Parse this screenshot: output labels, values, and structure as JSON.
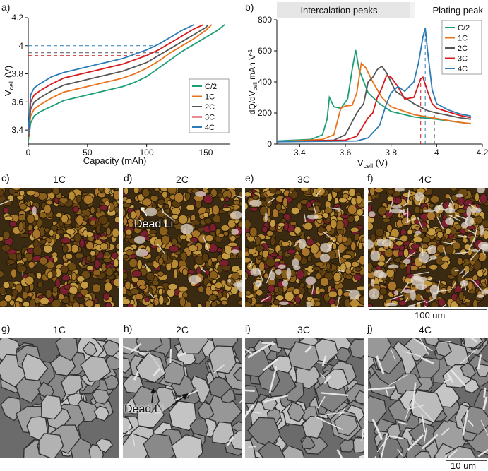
{
  "panel_letters": {
    "a": "a)",
    "b": "b)",
    "c": "c)",
    "d": "d)",
    "e": "e)",
    "f": "f)",
    "g": "g)",
    "h": "h)",
    "i": "i)",
    "j": "j)"
  },
  "chart_data": [
    {
      "id": "a",
      "type": "line",
      "xlabel": "Capacity (mAh)",
      "ylabel_main": "V",
      "ylabel_sub": "cell",
      "ylabel_unit": " (V)",
      "xlim": [
        0,
        170
      ],
      "ylim": [
        3.3,
        4.2
      ],
      "xticks": [
        0,
        50,
        100,
        150
      ],
      "yticks": [
        3.4,
        3.6,
        3.8,
        4.0,
        4.2
      ],
      "ytick_labels": [
        "3.4",
        "3.6",
        "3.8",
        "4",
        "4.2"
      ],
      "legend_position": "bottom-right",
      "series": [
        {
          "name": "C/2",
          "color": "#1b9e77",
          "x": [
            0,
            2,
            5,
            10,
            20,
            30,
            40,
            50,
            60,
            70,
            80,
            90,
            100,
            110,
            120,
            130,
            140,
            150,
            160,
            166
          ],
          "y": [
            3.32,
            3.45,
            3.5,
            3.53,
            3.57,
            3.61,
            3.63,
            3.65,
            3.67,
            3.69,
            3.71,
            3.74,
            3.78,
            3.84,
            3.9,
            3.96,
            4.01,
            4.06,
            4.11,
            4.15
          ]
        },
        {
          "name": "1C",
          "color": "#e8731a",
          "x": [
            0,
            2,
            5,
            10,
            20,
            30,
            40,
            50,
            60,
            70,
            80,
            90,
            100,
            110,
            120,
            130,
            140,
            150,
            155
          ],
          "y": [
            3.34,
            3.5,
            3.55,
            3.58,
            3.63,
            3.67,
            3.69,
            3.71,
            3.73,
            3.75,
            3.77,
            3.8,
            3.84,
            3.89,
            3.95,
            4.0,
            4.05,
            4.11,
            4.15
          ]
        },
        {
          "name": "2C",
          "color": "#555555",
          "x": [
            0,
            2,
            5,
            10,
            20,
            30,
            40,
            50,
            60,
            70,
            80,
            90,
            100,
            110,
            120,
            130,
            140,
            150,
            152
          ],
          "y": [
            3.35,
            3.55,
            3.6,
            3.63,
            3.68,
            3.72,
            3.74,
            3.76,
            3.78,
            3.8,
            3.82,
            3.85,
            3.88,
            3.93,
            3.98,
            4.03,
            4.08,
            4.13,
            4.15
          ]
        },
        {
          "name": "3C",
          "color": "#d7191c",
          "x": [
            0,
            2,
            5,
            10,
            20,
            30,
            40,
            50,
            60,
            70,
            80,
            90,
            100,
            110,
            120,
            130,
            140,
            148
          ],
          "y": [
            3.36,
            3.6,
            3.65,
            3.68,
            3.73,
            3.77,
            3.79,
            3.81,
            3.83,
            3.85,
            3.87,
            3.9,
            3.93,
            3.97,
            4.02,
            4.07,
            4.12,
            4.15
          ]
        },
        {
          "name": "4C",
          "color": "#2c7bb6",
          "x": [
            0,
            2,
            5,
            10,
            20,
            30,
            40,
            50,
            60,
            70,
            80,
            90,
            100,
            110,
            120,
            130,
            140
          ],
          "y": [
            3.37,
            3.65,
            3.7,
            3.73,
            3.78,
            3.81,
            3.83,
            3.85,
            3.87,
            3.89,
            3.91,
            3.94,
            3.97,
            4.01,
            4.06,
            4.11,
            4.15
          ]
        }
      ],
      "reference_lines": [
        {
          "series": "4C",
          "y": 4.0,
          "color": "#2c7bb6"
        },
        {
          "series": "2C",
          "y": 3.95,
          "color": "#555555"
        },
        {
          "series": "3C",
          "y": 3.93,
          "color": "#d7191c"
        }
      ]
    },
    {
      "id": "b",
      "type": "line",
      "xlabel_main": "V",
      "xlabel_sub": "cell",
      "xlabel_unit": " (V)",
      "ylabel": "dQ/dV",
      "ylabel_sub": "cell",
      "ylabel_unit": " mAh V",
      "ylabel_sup": "-1",
      "xlim": [
        3.3,
        4.2
      ],
      "ylim": [
        0,
        800
      ],
      "xticks": [
        3.4,
        3.6,
        3.8,
        4.0,
        4.2
      ],
      "xtick_labels": [
        "3.4",
        "3.6",
        "3.8",
        "4",
        "4.2"
      ],
      "yticks": [
        0,
        200,
        400,
        600,
        800
      ],
      "annotations": {
        "intercalation": "Intercalation peaks",
        "plating": "Plating peak"
      },
      "legend_position": "top-right",
      "series": [
        {
          "name": "C/2",
          "color": "#1b9e77",
          "x": [
            3.3,
            3.45,
            3.5,
            3.52,
            3.53,
            3.55,
            3.58,
            3.61,
            3.63,
            3.645,
            3.66,
            3.7,
            3.75,
            3.8,
            3.9,
            4.0,
            4.1,
            4.15
          ],
          "y": [
            20,
            30,
            60,
            160,
            300,
            240,
            230,
            290,
            480,
            605,
            480,
            330,
            260,
            210,
            175,
            160,
            140,
            130
          ]
        },
        {
          "name": "1C",
          "color": "#e8731a",
          "x": [
            3.3,
            3.5,
            3.55,
            3.58,
            3.6,
            3.63,
            3.65,
            3.67,
            3.69,
            3.72,
            3.76,
            3.8,
            3.9,
            4.0,
            4.1,
            4.15
          ],
          "y": [
            15,
            30,
            60,
            230,
            245,
            250,
            330,
            520,
            490,
            400,
            300,
            240,
            190,
            165,
            140,
            132
          ]
        },
        {
          "name": "2C",
          "color": "#555555",
          "x": [
            3.3,
            3.55,
            3.6,
            3.65,
            3.68,
            3.7,
            3.72,
            3.74,
            3.76,
            3.78,
            3.82,
            3.86,
            3.9,
            3.96,
            4.0,
            4.1,
            4.15
          ],
          "y": [
            15,
            25,
            60,
            200,
            260,
            400,
            430,
            480,
            500,
            460,
            340,
            300,
            260,
            215,
            200,
            170,
            160
          ]
        },
        {
          "name": "3C",
          "color": "#d7191c",
          "x": [
            3.3,
            3.6,
            3.65,
            3.7,
            3.72,
            3.74,
            3.76,
            3.78,
            3.8,
            3.83,
            3.86,
            3.9,
            3.93,
            3.94,
            3.96,
            3.98,
            4.0,
            4.1,
            4.15
          ],
          "y": [
            15,
            25,
            50,
            170,
            200,
            300,
            360,
            440,
            430,
            370,
            290,
            300,
            420,
            430,
            340,
            260,
            230,
            185,
            170
          ]
        },
        {
          "name": "4C",
          "color": "#2c7bb6",
          "x": [
            3.3,
            3.65,
            3.7,
            3.75,
            3.78,
            3.8,
            3.83,
            3.86,
            3.9,
            3.92,
            3.94,
            3.95,
            3.96,
            3.98,
            4.0,
            4.05,
            4.1,
            4.15
          ],
          "y": [
            15,
            20,
            40,
            120,
            260,
            330,
            370,
            340,
            400,
            520,
            690,
            745,
            600,
            350,
            260,
            220,
            195,
            180
          ]
        }
      ],
      "reference_lines": [
        {
          "series": "2C",
          "x": 3.99,
          "color": "#555555"
        },
        {
          "series": "3C",
          "x": 3.93,
          "color": "#d7191c"
        },
        {
          "series": "4C",
          "x": 3.95,
          "color": "#2c7bb6"
        }
      ]
    }
  ],
  "optical_row": {
    "titles": [
      "1C",
      "2C",
      "3C",
      "4C"
    ],
    "dead_li_label": "Dead Li",
    "scalebar_label": "100 um"
  },
  "sem_row": {
    "titles": [
      "1C",
      "2C",
      "3C",
      "4C"
    ],
    "dead_li_label": "Dead Li",
    "scalebar_label": "10 um"
  }
}
